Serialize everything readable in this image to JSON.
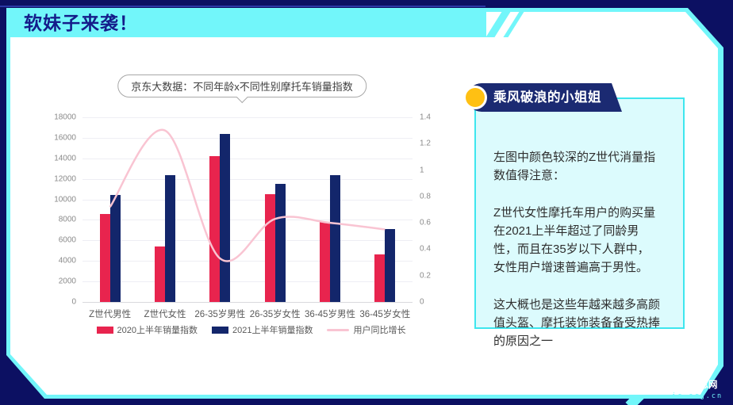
{
  "page_title": "软妹子来袭！",
  "chart": {
    "bubble_title": "京东大数据：不同年龄x不同性别摩托车销量指数"
  },
  "chart_data": {
    "type": "bar",
    "title": "京东大数据：不同年龄x不同性别摩托车销量指数",
    "categories": [
      "Z世代男性",
      "Z世代女性",
      "26-35岁男性",
      "26-35岁女性",
      "36-45岁男性",
      "36-45岁女性"
    ],
    "series": [
      {
        "name": "2020上半年销量指数",
        "type": "bar",
        "axis": "left",
        "color": "#e8244e",
        "values": [
          8600,
          5400,
          14200,
          10500,
          7800,
          4600
        ]
      },
      {
        "name": "2021上半年销量指数",
        "type": "bar",
        "axis": "left",
        "color": "#13266b",
        "values": [
          10400,
          12400,
          16400,
          11500,
          12400,
          7100
        ]
      },
      {
        "name": "用户同比增长",
        "type": "line",
        "axis": "right",
        "color": "#f9c4d2",
        "values": [
          0.72,
          1.3,
          0.33,
          0.63,
          0.6,
          0.55
        ]
      }
    ],
    "left_axis": {
      "min": 0,
      "max": 18000,
      "step": 2000
    },
    "right_axis": {
      "min": 0,
      "max": 1.4,
      "step": 0.2
    },
    "grid": true,
    "legend_position": "bottom"
  },
  "info_card": {
    "header": "乘风破浪的小姐姐",
    "paragraphs": [
      "左图中颜色较深的Z世代消量指数值得注意：",
      "Z世代女性摩托车用户的购买量在2021上半年超过了同龄男性，而且在35岁以下人群中，女性用户增速普遍高于男性。",
      "这大概也是这些年越来越多高颜值头盔、摩托装饰装备备受热捧的原因之一"
    ]
  },
  "watermark": {
    "line1": "经济信息网",
    "line2": "ic.org.cn"
  },
  "colors": {
    "background": "#0c1062",
    "accent_cyan": "#72f6fa",
    "title_navy": "#141c8a",
    "banner_navy": "#1b2a72",
    "dot_yellow": "#ffc013",
    "bar_2020": "#e8244e",
    "bar_2021": "#13266b",
    "line_pink": "#f9c4d2",
    "infobox_bg": "#dcfbfd",
    "infobox_border": "#3ee6ee"
  }
}
